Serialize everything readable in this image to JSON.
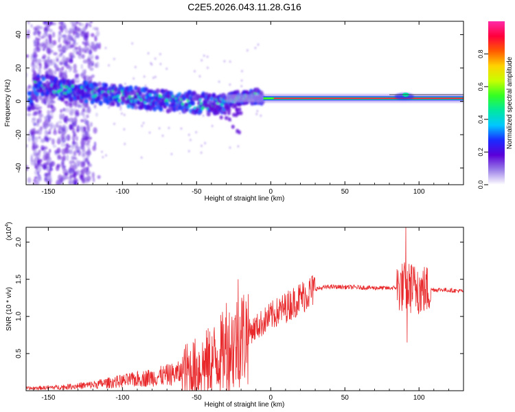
{
  "figure": {
    "title": "C2E5.2026.043.11.28.G16"
  },
  "chart_data": [
    {
      "type": "heatmap",
      "xlabel": "Height of straight line (km)",
      "ylabel": "Frequency (Hz)",
      "xlim": [
        -165,
        130
      ],
      "ylim": [
        -50,
        48
      ],
      "x_ticks": [
        -150,
        -100,
        -50,
        0,
        50,
        100
      ],
      "x_tick_labels": [
        "-150",
        "-100",
        "-50",
        "0",
        "50",
        "100"
      ],
      "y_ticks": [
        -40,
        -20,
        0,
        20,
        40
      ],
      "y_tick_labels": [
        "-40",
        "-20",
        "0",
        "20",
        "40"
      ],
      "colorbar": {
        "label": "Normalized spectral amplitude",
        "range": [
          0,
          1
        ],
        "ticks": [
          0.0,
          0.2,
          0.4,
          0.6,
          0.8
        ],
        "tick_labels": [
          "0.0",
          "0.2",
          "0.4",
          "0.6",
          "0.8"
        ],
        "colors": [
          "#ffffff",
          "#9b7fe8",
          "#5a00d8",
          "#1a2bff",
          "#00c8ff",
          "#00e8a0",
          "#33ff22",
          "#c8ff00",
          "#ffd200",
          "#ff5a00",
          "#ff003c",
          "#ff2aa8"
        ]
      },
      "ridge_points": [
        {
          "x": -160,
          "f": 10
        },
        {
          "x": -150,
          "f": 9
        },
        {
          "x": -140,
          "f": 7
        },
        {
          "x": -130,
          "f": 6
        },
        {
          "x": -120,
          "f": 5
        },
        {
          "x": -110,
          "f": 4
        },
        {
          "x": -100,
          "f": 3
        },
        {
          "x": -90,
          "f": 2
        },
        {
          "x": -80,
          "f": 1
        },
        {
          "x": -70,
          "f": 0
        },
        {
          "x": -60,
          "f": 0
        },
        {
          "x": -50,
          "f": -1
        },
        {
          "x": -40,
          "f": -2
        },
        {
          "x": -30,
          "f": 0
        },
        {
          "x": -20,
          "f": 2
        },
        {
          "x": -10,
          "f": 3
        },
        {
          "x": 0,
          "f": 2
        },
        {
          "x": 20,
          "f": 1.5
        },
        {
          "x": 40,
          "f": 1.5
        },
        {
          "x": 60,
          "f": 1.5
        },
        {
          "x": 80,
          "f": 2
        },
        {
          "x": 90,
          "f": 3
        },
        {
          "x": 100,
          "f": 2
        },
        {
          "x": 130,
          "f": 1.5
        }
      ]
    },
    {
      "type": "line",
      "xlabel": "Height of straight line (km)",
      "ylabel": "SNR (10 * v/v)",
      "y_multiplier": "(x10^4)",
      "y_multiplier_base": "(x10",
      "y_multiplier_exp": "4",
      "y_multiplier_close": ")",
      "xlim": [
        -165,
        130
      ],
      "ylim": [
        0,
        2.2
      ],
      "x_ticks": [
        -150,
        -100,
        -50,
        0,
        50,
        100
      ],
      "x_tick_labels": [
        "-150",
        "-100",
        "-50",
        "0",
        "50",
        "100"
      ],
      "y_ticks": [
        0.5,
        1.0,
        1.5,
        2.0
      ],
      "y_tick_labels": [
        "0.5",
        "1.0",
        "1.5",
        "2.0"
      ],
      "color": "#e8282a",
      "trend": [
        {
          "x": -165,
          "y": 0.03
        },
        {
          "x": -140,
          "y": 0.05
        },
        {
          "x": -120,
          "y": 0.08
        },
        {
          "x": -100,
          "y": 0.13
        },
        {
          "x": -80,
          "y": 0.18
        },
        {
          "x": -60,
          "y": 0.24
        },
        {
          "x": -50,
          "y": 0.3
        },
        {
          "x": -40,
          "y": 0.4
        },
        {
          "x": -30,
          "y": 0.55
        },
        {
          "x": -20,
          "y": 0.72
        },
        {
          "x": -10,
          "y": 0.85
        },
        {
          "x": 0,
          "y": 1.0
        },
        {
          "x": 10,
          "y": 1.12
        },
        {
          "x": 20,
          "y": 1.25
        },
        {
          "x": 30,
          "y": 1.37
        },
        {
          "x": 40,
          "y": 1.4
        },
        {
          "x": 60,
          "y": 1.39
        },
        {
          "x": 80,
          "y": 1.38
        },
        {
          "x": 90,
          "y": 1.4
        },
        {
          "x": 100,
          "y": 1.36
        },
        {
          "x": 115,
          "y": 1.36
        },
        {
          "x": 130,
          "y": 1.34
        }
      ],
      "spikes": [
        {
          "x": -22,
          "y": 1.5
        },
        {
          "x": -30,
          "y": 1.18
        },
        {
          "x": -25,
          "y": 0.05
        },
        {
          "x": 91,
          "y": 2.2
        },
        {
          "x": 92,
          "y": 0.65
        },
        {
          "x": 95,
          "y": 1.7
        },
        {
          "x": 99,
          "y": 1.6
        },
        {
          "x": 102,
          "y": 1.5
        }
      ]
    }
  ]
}
